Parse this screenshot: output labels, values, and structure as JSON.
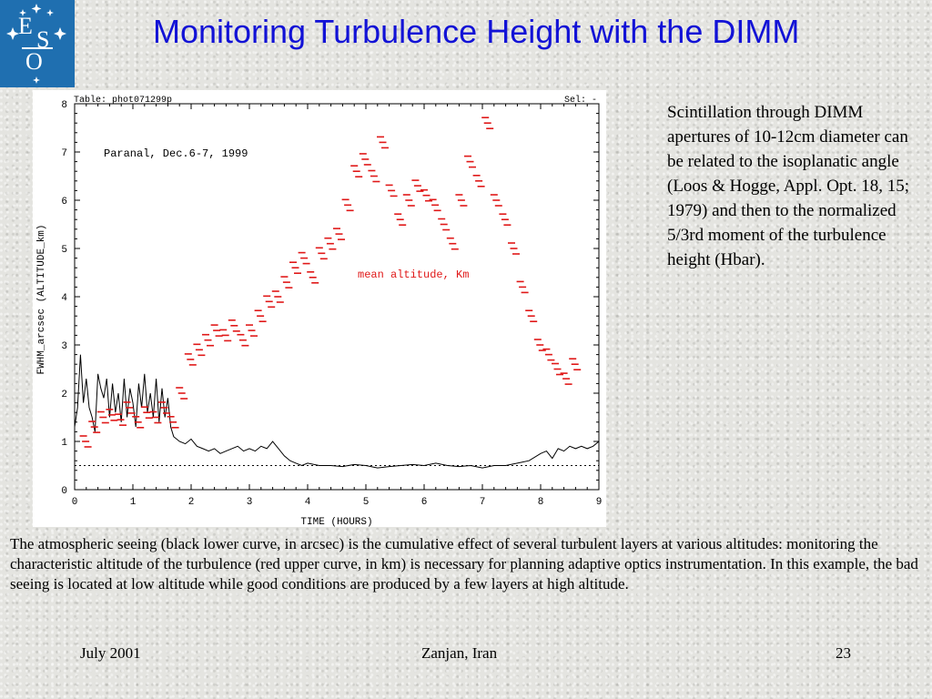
{
  "slide": {
    "title": "Monitoring Turbulence Height with the DIMM",
    "logo_text": "ESO",
    "side_text": "Scintillation through DIMM apertures of 10-12cm diameter can be related to the isoplanatic angle (Loos & Hogge, Appl. Opt. 18, 15; 1979) and then to the normalized 5/3rd moment of the turbulence height (Hbar).",
    "caption": "The atmospheric seeing (black lower curve, in arcsec) is the cumulative effect of several turbulent layers at various altitudes: monitoring the characteristic altitude of the turbulence (red upper curve, in km) is necessary for planning adaptive optics instrumentation. In this example, the bad seeing is located at low altitude while good conditions are produced by a few layers at high altitude.",
    "footer": {
      "date": "July 2001",
      "location": "Zanjan, Iran",
      "page": "23"
    }
  },
  "colors": {
    "title": "#1212d6",
    "logo_bg": "#1f6fb0",
    "altitude": "#e01818",
    "seeing": "#000000"
  },
  "chart_data": {
    "type": "line",
    "header_left": "Table: phot071299p",
    "header_right": "Sel: -",
    "annotation": "Paranal, Dec.6-7, 1999",
    "series_label": "mean altitude, Km",
    "xlabel": "TIME (HOURS)",
    "ylabel": "FWHM_arcsec (ALTITUDE_km)",
    "xlim": [
      0,
      9
    ],
    "ylim": [
      0,
      8
    ],
    "xticks": [
      "0",
      "1",
      "2",
      "3",
      "4",
      "5",
      "6",
      "7",
      "8",
      "9"
    ],
    "yticks": [
      "0",
      "1",
      "2",
      "3",
      "4",
      "5",
      "6",
      "7",
      "8"
    ],
    "reference_line": 0.5,
    "series": [
      {
        "values_kind": "seeing_arcsec",
        "x": [
          0.0,
          0.05,
          0.1,
          0.15,
          0.2,
          0.25,
          0.3,
          0.35,
          0.4,
          0.45,
          0.5,
          0.55,
          0.6,
          0.65,
          0.7,
          0.75,
          0.8,
          0.85,
          0.9,
          0.95,
          1.0,
          1.05,
          1.1,
          1.15,
          1.2,
          1.25,
          1.3,
          1.35,
          1.4,
          1.45,
          1.5,
          1.55,
          1.6,
          1.65,
          1.7,
          1.8,
          1.9,
          2.0,
          2.1,
          2.2,
          2.3,
          2.4,
          2.5,
          2.6,
          2.7,
          2.8,
          2.9,
          3.0,
          3.1,
          3.2,
          3.3,
          3.4,
          3.5,
          3.6,
          3.7,
          3.8,
          3.9,
          4.0,
          4.2,
          4.4,
          4.6,
          4.8,
          5.0,
          5.2,
          5.4,
          5.6,
          5.8,
          6.0,
          6.2,
          6.4,
          6.6,
          6.8,
          7.0,
          7.2,
          7.4,
          7.6,
          7.8,
          8.0,
          8.1,
          8.2,
          8.3,
          8.4,
          8.5,
          8.6,
          8.7,
          8.8,
          8.9,
          9.0
        ],
        "y": [
          1.3,
          1.7,
          2.8,
          1.8,
          2.3,
          1.7,
          1.5,
          1.2,
          2.4,
          2.1,
          1.9,
          2.3,
          1.5,
          2.2,
          1.6,
          2.0,
          1.4,
          2.3,
          1.5,
          2.1,
          1.8,
          1.3,
          2.2,
          1.7,
          2.4,
          1.6,
          2.0,
          1.5,
          2.3,
          1.4,
          2.1,
          1.5,
          1.9,
          1.3,
          1.1,
          1.0,
          0.95,
          1.05,
          0.9,
          0.85,
          0.8,
          0.85,
          0.75,
          0.8,
          0.85,
          0.9,
          0.8,
          0.85,
          0.8,
          0.9,
          0.85,
          1.0,
          0.85,
          0.7,
          0.6,
          0.55,
          0.5,
          0.55,
          0.5,
          0.5,
          0.48,
          0.52,
          0.5,
          0.45,
          0.48,
          0.5,
          0.52,
          0.5,
          0.55,
          0.5,
          0.48,
          0.5,
          0.45,
          0.5,
          0.5,
          0.55,
          0.6,
          0.75,
          0.8,
          0.65,
          0.85,
          0.8,
          0.9,
          0.85,
          0.9,
          0.85,
          0.9,
          1.0
        ]
      },
      {
        "values_kind": "altitude_km",
        "x": [
          0.15,
          0.3,
          0.45,
          0.6,
          0.75,
          0.9,
          1.05,
          1.2,
          1.35,
          1.5,
          1.65,
          1.8,
          1.95,
          2.1,
          2.25,
          2.4,
          2.55,
          2.7,
          2.85,
          3.0,
          3.15,
          3.3,
          3.45,
          3.6,
          3.75,
          3.9,
          4.05,
          4.2,
          4.35,
          4.5,
          4.65,
          4.8,
          4.95,
          5.1,
          5.25,
          5.4,
          5.55,
          5.7,
          5.85,
          6.0,
          6.15,
          6.3,
          6.45,
          6.6,
          6.75,
          6.9,
          7.05,
          7.2,
          7.35,
          7.5,
          7.65,
          7.8,
          7.95,
          8.1,
          8.25,
          8.4,
          8.55
        ],
        "y": [
          1.0,
          1.3,
          1.5,
          1.55,
          1.45,
          1.7,
          1.4,
          1.6,
          1.5,
          1.7,
          1.4,
          2.0,
          2.7,
          2.9,
          3.1,
          3.3,
          3.2,
          3.4,
          3.1,
          3.3,
          3.6,
          3.9,
          4.0,
          4.3,
          4.6,
          4.8,
          4.4,
          4.9,
          5.1,
          5.3,
          5.9,
          6.6,
          6.85,
          6.5,
          7.2,
          6.2,
          5.6,
          6.0,
          6.3,
          6.1,
          5.9,
          5.5,
          5.1,
          6.0,
          6.8,
          6.4,
          7.6,
          6.0,
          5.6,
          5.0,
          4.2,
          3.6,
          3.0,
          2.8,
          2.5,
          2.3,
          2.6
        ]
      }
    ]
  }
}
